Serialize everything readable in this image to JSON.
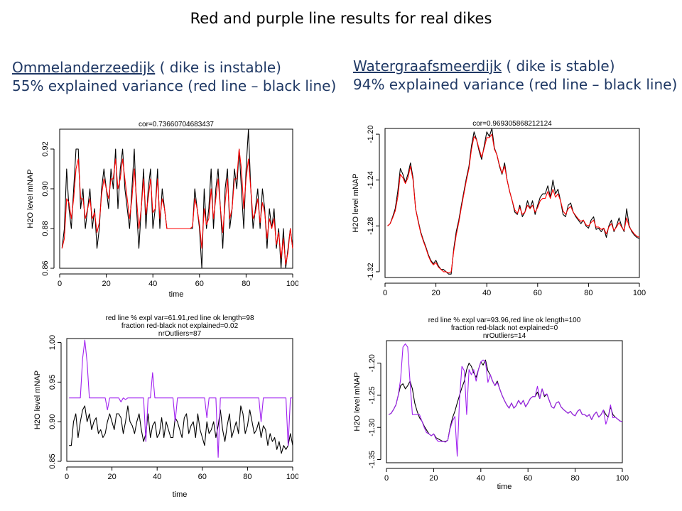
{
  "slide": {
    "title": "Red and purple line results for real dikes",
    "left": {
      "name": "Ommelanderzeedijk",
      "status": " ( dike is instable)",
      "variance": "55% explained variance (red line – black line)"
    },
    "right": {
      "name": "Watergraafsmeerdijk",
      "status": " ( dike is stable)",
      "variance": "94% explained variance (red line – black line)"
    }
  },
  "chart_data": [
    {
      "type": "line",
      "title": "cor=0.73660704683437",
      "xlabel": "time",
      "ylabel": "H2O level mNAP",
      "xlim": [
        0,
        100
      ],
      "ylim": [
        0.86,
        0.93
      ],
      "xticks": [
        0,
        20,
        40,
        60,
        80,
        100
      ],
      "yticks": [
        0.86,
        0.88,
        0.9,
        0.92
      ],
      "x_start": 1,
      "grid": false,
      "series": [
        {
          "color": "#000000",
          "values": [
            0.87,
            0.88,
            0.91,
            0.89,
            0.88,
            0.9,
            0.92,
            0.92,
            0.89,
            0.9,
            0.88,
            0.89,
            0.9,
            0.88,
            0.89,
            0.87,
            0.88,
            0.9,
            0.91,
            0.9,
            0.89,
            0.91,
            0.9,
            0.92,
            0.89,
            0.91,
            0.92,
            0.9,
            0.89,
            0.88,
            0.9,
            0.92,
            0.89,
            0.87,
            0.89,
            0.91,
            0.88,
            0.9,
            0.91,
            0.88,
            0.89,
            0.91,
            0.88,
            0.9,
            0.89,
            0.88,
            0.88,
            0.88,
            0.88,
            0.88,
            0.88,
            0.88,
            0.88,
            0.88,
            0.88,
            0.88,
            0.88,
            0.9,
            0.89,
            0.88,
            0.86,
            0.9,
            0.88,
            0.89,
            0.91,
            0.88,
            0.9,
            0.91,
            0.89,
            0.87,
            0.9,
            0.91,
            0.88,
            0.89,
            0.91,
            0.9,
            0.92,
            0.9,
            0.88,
            0.91,
            0.93,
            0.9,
            0.88,
            0.89,
            0.9,
            0.88,
            0.9,
            0.89,
            0.87,
            0.89,
            0.88,
            0.89,
            0.87,
            0.88,
            0.86,
            0.88,
            0.86,
            0.87,
            0.88,
            0.87
          ]
        },
        {
          "color": "#ff0000",
          "values": [
            0.87,
            0.875,
            0.895,
            0.893,
            0.885,
            0.895,
            0.91,
            0.915,
            0.895,
            0.895,
            0.885,
            0.89,
            0.895,
            0.885,
            0.888,
            0.878,
            0.883,
            0.897,
            0.905,
            0.9,
            0.895,
            0.905,
            0.905,
            0.915,
            0.9,
            0.905,
            0.915,
            0.905,
            0.895,
            0.885,
            0.895,
            0.91,
            0.895,
            0.88,
            0.89,
            0.905,
            0.887,
            0.895,
            0.905,
            0.888,
            0.89,
            0.905,
            0.885,
            0.895,
            0.89,
            0.88,
            0.88,
            0.88,
            0.88,
            0.88,
            0.88,
            0.88,
            0.88,
            0.88,
            0.88,
            0.88,
            0.881,
            0.895,
            0.89,
            0.882,
            0.87,
            0.89,
            0.882,
            0.885,
            0.9,
            0.885,
            0.895,
            0.905,
            0.89,
            0.878,
            0.893,
            0.905,
            0.885,
            0.89,
            0.905,
            0.905,
            0.92,
            0.91,
            0.89,
            0.905,
            0.915,
            0.9,
            0.885,
            0.888,
            0.895,
            0.883,
            0.893,
            0.888,
            0.875,
            0.885,
            0.88,
            0.885,
            0.872,
            0.878,
            0.865,
            0.875,
            0.862,
            0.868,
            0.88,
            0.87
          ]
        }
      ]
    },
    {
      "type": "line",
      "title": "cor=0.969305868212124",
      "xlabel": "",
      "ylabel": "H2O level mNAP",
      "xlim": [
        0,
        100
      ],
      "ylim": [
        -1.325,
        -1.195
      ],
      "xticks": [
        0,
        20,
        40,
        60,
        80,
        100
      ],
      "yticks": [
        -1.32,
        -1.28,
        -1.24,
        -1.2
      ],
      "x_start": 1,
      "grid": false,
      "series": [
        {
          "color": "#000000",
          "values": [
            -1.28,
            -1.278,
            -1.272,
            -1.265,
            -1.25,
            -1.23,
            -1.235,
            -1.242,
            -1.235,
            -1.225,
            -1.238,
            -1.265,
            -1.275,
            -1.285,
            -1.292,
            -1.298,
            -1.305,
            -1.31,
            -1.313,
            -1.31,
            -1.315,
            -1.318,
            -1.318,
            -1.32,
            -1.322,
            -1.322,
            -1.3,
            -1.285,
            -1.275,
            -1.262,
            -1.25,
            -1.238,
            -1.228,
            -1.21,
            -1.198,
            -1.205,
            -1.215,
            -1.222,
            -1.21,
            -1.198,
            -1.202,
            -1.195,
            -1.212,
            -1.218,
            -1.228,
            -1.235,
            -1.225,
            -1.24,
            -1.25,
            -1.258,
            -1.268,
            -1.27,
            -1.262,
            -1.272,
            -1.268,
            -1.258,
            -1.265,
            -1.258,
            -1.27,
            -1.262,
            -1.255,
            -1.252,
            -1.252,
            -1.245,
            -1.255,
            -1.24,
            -1.252,
            -1.248,
            -1.258,
            -1.27,
            -1.272,
            -1.262,
            -1.26,
            -1.268,
            -1.272,
            -1.275,
            -1.278,
            -1.275,
            -1.28,
            -1.282,
            -1.275,
            -1.272,
            -1.283,
            -1.282,
            -1.285,
            -1.282,
            -1.29,
            -1.28,
            -1.275,
            -1.285,
            -1.28,
            -1.273,
            -1.28,
            -1.285,
            -1.265,
            -1.28,
            -1.285,
            -1.288,
            -1.29,
            -1.291
          ]
        },
        {
          "color": "#ff0000",
          "values": [
            -1.28,
            -1.278,
            -1.273,
            -1.267,
            -1.255,
            -1.235,
            -1.238,
            -1.243,
            -1.238,
            -1.228,
            -1.24,
            -1.265,
            -1.276,
            -1.286,
            -1.293,
            -1.299,
            -1.306,
            -1.311,
            -1.314,
            -1.312,
            -1.316,
            -1.318,
            -1.32,
            -1.32,
            -1.321,
            -1.32,
            -1.302,
            -1.288,
            -1.277,
            -1.264,
            -1.252,
            -1.24,
            -1.23,
            -1.213,
            -1.202,
            -1.205,
            -1.213,
            -1.22,
            -1.212,
            -1.203,
            -1.203,
            -1.2,
            -1.213,
            -1.218,
            -1.227,
            -1.234,
            -1.228,
            -1.24,
            -1.25,
            -1.258,
            -1.266,
            -1.269,
            -1.264,
            -1.27,
            -1.268,
            -1.262,
            -1.265,
            -1.262,
            -1.268,
            -1.264,
            -1.258,
            -1.256,
            -1.256,
            -1.25,
            -1.256,
            -1.248,
            -1.255,
            -1.252,
            -1.258,
            -1.267,
            -1.27,
            -1.265,
            -1.263,
            -1.268,
            -1.271,
            -1.274,
            -1.276,
            -1.275,
            -1.279,
            -1.28,
            -1.277,
            -1.275,
            -1.281,
            -1.281,
            -1.283,
            -1.282,
            -1.287,
            -1.281,
            -1.278,
            -1.284,
            -1.281,
            -1.277,
            -1.281,
            -1.284,
            -1.273,
            -1.281,
            -1.284,
            -1.287,
            -1.289,
            -1.29
          ]
        }
      ]
    },
    {
      "type": "line",
      "title": "red line % expl var=61.91,red line ok  length=98",
      "subtitle": [
        "fraction red-black not explained=0.02",
        "nrOutliers=87"
      ],
      "xlabel": "time",
      "ylabel": "H2O level mNAP",
      "xlim": [
        0,
        100
      ],
      "ylim": [
        0.85,
        1.005
      ],
      "xticks": [
        0,
        20,
        40,
        60,
        80,
        100
      ],
      "yticks": [
        0.85,
        0.9,
        0.95,
        1.0
      ],
      "x_start": 1,
      "grid": false,
      "series": [
        {
          "color": "#000000",
          "values": [
            0.87,
            0.87,
            0.9,
            0.91,
            0.88,
            0.9,
            0.915,
            0.92,
            0.9,
            0.91,
            0.89,
            0.9,
            0.905,
            0.885,
            0.89,
            0.88,
            0.885,
            0.9,
            0.91,
            0.9,
            0.89,
            0.91,
            0.91,
            0.905,
            0.885,
            0.9,
            0.92,
            0.9,
            0.895,
            0.885,
            0.9,
            0.91,
            0.89,
            0.875,
            0.885,
            0.91,
            0.88,
            0.895,
            0.9,
            0.88,
            0.885,
            0.905,
            0.88,
            0.9,
            0.89,
            0.88,
            0.88,
            0.905,
            0.9,
            0.89,
            0.88,
            0.905,
            0.91,
            0.885,
            0.895,
            0.9,
            0.88,
            0.91,
            0.89,
            0.88,
            0.87,
            0.9,
            0.885,
            0.89,
            0.9,
            0.88,
            0.895,
            0.915,
            0.89,
            0.875,
            0.895,
            0.91,
            0.88,
            0.89,
            0.9,
            0.885,
            0.92,
            0.91,
            0.885,
            0.895,
            0.915,
            0.9,
            0.885,
            0.89,
            0.9,
            0.88,
            0.895,
            0.89,
            0.87,
            0.885,
            0.875,
            0.88,
            0.865,
            0.875,
            0.86,
            0.87,
            0.865,
            0.87,
            0.885,
            0.87
          ]
        },
        {
          "color": "#a020f0",
          "values": [
            0.93,
            0.93,
            0.93,
            0.93,
            0.93,
            0.93,
            0.98,
            1.003,
            0.975,
            0.93,
            0.93,
            0.93,
            0.93,
            0.93,
            0.93,
            0.93,
            0.93,
            0.915,
            0.93,
            0.93,
            0.93,
            0.93,
            0.93,
            0.925,
            0.93,
            0.928,
            0.93,
            0.93,
            0.93,
            0.93,
            0.93,
            0.93,
            0.93,
            0.93,
            0.875,
            0.93,
            0.93,
            0.962,
            0.93,
            0.93,
            0.93,
            0.93,
            0.93,
            0.93,
            0.93,
            0.93,
            0.93,
            0.9,
            0.93,
            0.93,
            0.93,
            0.93,
            0.93,
            0.93,
            0.93,
            0.93,
            0.93,
            0.93,
            0.93,
            0.93,
            0.93,
            0.905,
            0.93,
            0.93,
            0.93,
            0.93,
            0.855,
            0.93,
            0.93,
            0.93,
            0.93,
            0.93,
            0.93,
            0.93,
            0.93,
            0.93,
            0.93,
            0.93,
            0.93,
            0.93,
            0.93,
            0.93,
            0.93,
            0.93,
            0.93,
            0.9,
            0.93,
            0.93,
            0.93,
            0.93,
            0.93,
            0.93,
            0.93,
            0.93,
            0.93,
            0.93,
            0.93,
            0.87,
            0.93,
            0.93
          ]
        }
      ]
    },
    {
      "type": "line",
      "title": "red line % expl var=93.96,red line ok  length=100",
      "subtitle": [
        "fraction red-black not explained=0",
        "nrOutliers=14"
      ],
      "xlabel": "time",
      "ylabel": "H2O level mNAP",
      "xlim": [
        0,
        100
      ],
      "ylim": [
        -1.355,
        -1.165
      ],
      "xticks": [
        0,
        20,
        40,
        60,
        80,
        100
      ],
      "yticks": [
        -1.35,
        -1.3,
        -1.25,
        -1.2
      ],
      "x_start": 1,
      "grid": false,
      "series": [
        {
          "color": "#000000",
          "values": [
            -1.28,
            -1.278,
            -1.272,
            -1.265,
            -1.25,
            -1.235,
            -1.232,
            -1.24,
            -1.235,
            -1.228,
            -1.24,
            -1.262,
            -1.275,
            -1.285,
            -1.29,
            -1.298,
            -1.304,
            -1.31,
            -1.313,
            -1.31,
            -1.316,
            -1.318,
            -1.32,
            -1.322,
            -1.322,
            -1.32,
            -1.3,
            -1.285,
            -1.275,
            -1.262,
            -1.25,
            -1.238,
            -1.228,
            -1.21,
            -1.2,
            -1.205,
            -1.215,
            -1.222,
            -1.21,
            -1.198,
            -1.203,
            -1.195,
            -1.212,
            -1.218,
            -1.228,
            -1.235,
            -1.228,
            -1.24,
            -1.25,
            -1.258,
            -1.265,
            -1.27,
            -1.262,
            -1.27,
            -1.266,
            -1.258,
            -1.264,
            -1.258,
            -1.268,
            -1.262,
            -1.255,
            -1.252,
            -1.252,
            -1.245,
            -1.255,
            -1.24,
            -1.252,
            -1.248,
            -1.258,
            -1.268,
            -1.27,
            -1.262,
            -1.26,
            -1.268,
            -1.272,
            -1.275,
            -1.278,
            -1.275,
            -1.28,
            -1.282,
            -1.275,
            -1.272,
            -1.28,
            -1.28,
            -1.283,
            -1.28,
            -1.288,
            -1.28,
            -1.276,
            -1.284,
            -1.28,
            -1.273,
            -1.28,
            -1.284,
            -1.268,
            -1.28,
            -1.284,
            -1.287,
            -1.29,
            -1.291
          ]
        },
        {
          "color": "#a020f0",
          "values": [
            -1.28,
            -1.278,
            -1.272,
            -1.265,
            -1.25,
            -1.225,
            -1.175,
            -1.17,
            -1.175,
            -1.23,
            -1.28,
            -1.28,
            -1.28,
            -1.28,
            -1.29,
            -1.3,
            -1.308,
            -1.31,
            -1.313,
            -1.31,
            -1.318,
            -1.322,
            -1.322,
            -1.322,
            -1.323,
            -1.32,
            -1.302,
            -1.29,
            -1.283,
            -1.345,
            -1.255,
            -1.205,
            -1.212,
            -1.28,
            -1.21,
            -1.218,
            -1.21,
            -1.228,
            -1.21,
            -1.198,
            -1.195,
            -1.198,
            -1.23,
            -1.218,
            -1.228,
            -1.235,
            -1.23,
            -1.24,
            -1.25,
            -1.258,
            -1.265,
            -1.27,
            -1.262,
            -1.27,
            -1.266,
            -1.258,
            -1.264,
            -1.258,
            -1.268,
            -1.262,
            -1.255,
            -1.252,
            -1.252,
            -1.236,
            -1.255,
            -1.24,
            -1.25,
            -1.248,
            -1.258,
            -1.268,
            -1.27,
            -1.262,
            -1.26,
            -1.268,
            -1.272,
            -1.275,
            -1.278,
            -1.275,
            -1.28,
            -1.282,
            -1.275,
            -1.272,
            -1.28,
            -1.28,
            -1.283,
            -1.28,
            -1.288,
            -1.28,
            -1.276,
            -1.284,
            -1.28,
            -1.273,
            -1.295,
            -1.284,
            -1.265,
            -1.285,
            -1.284,
            -1.287,
            -1.29,
            -1.291
          ]
        }
      ]
    }
  ]
}
